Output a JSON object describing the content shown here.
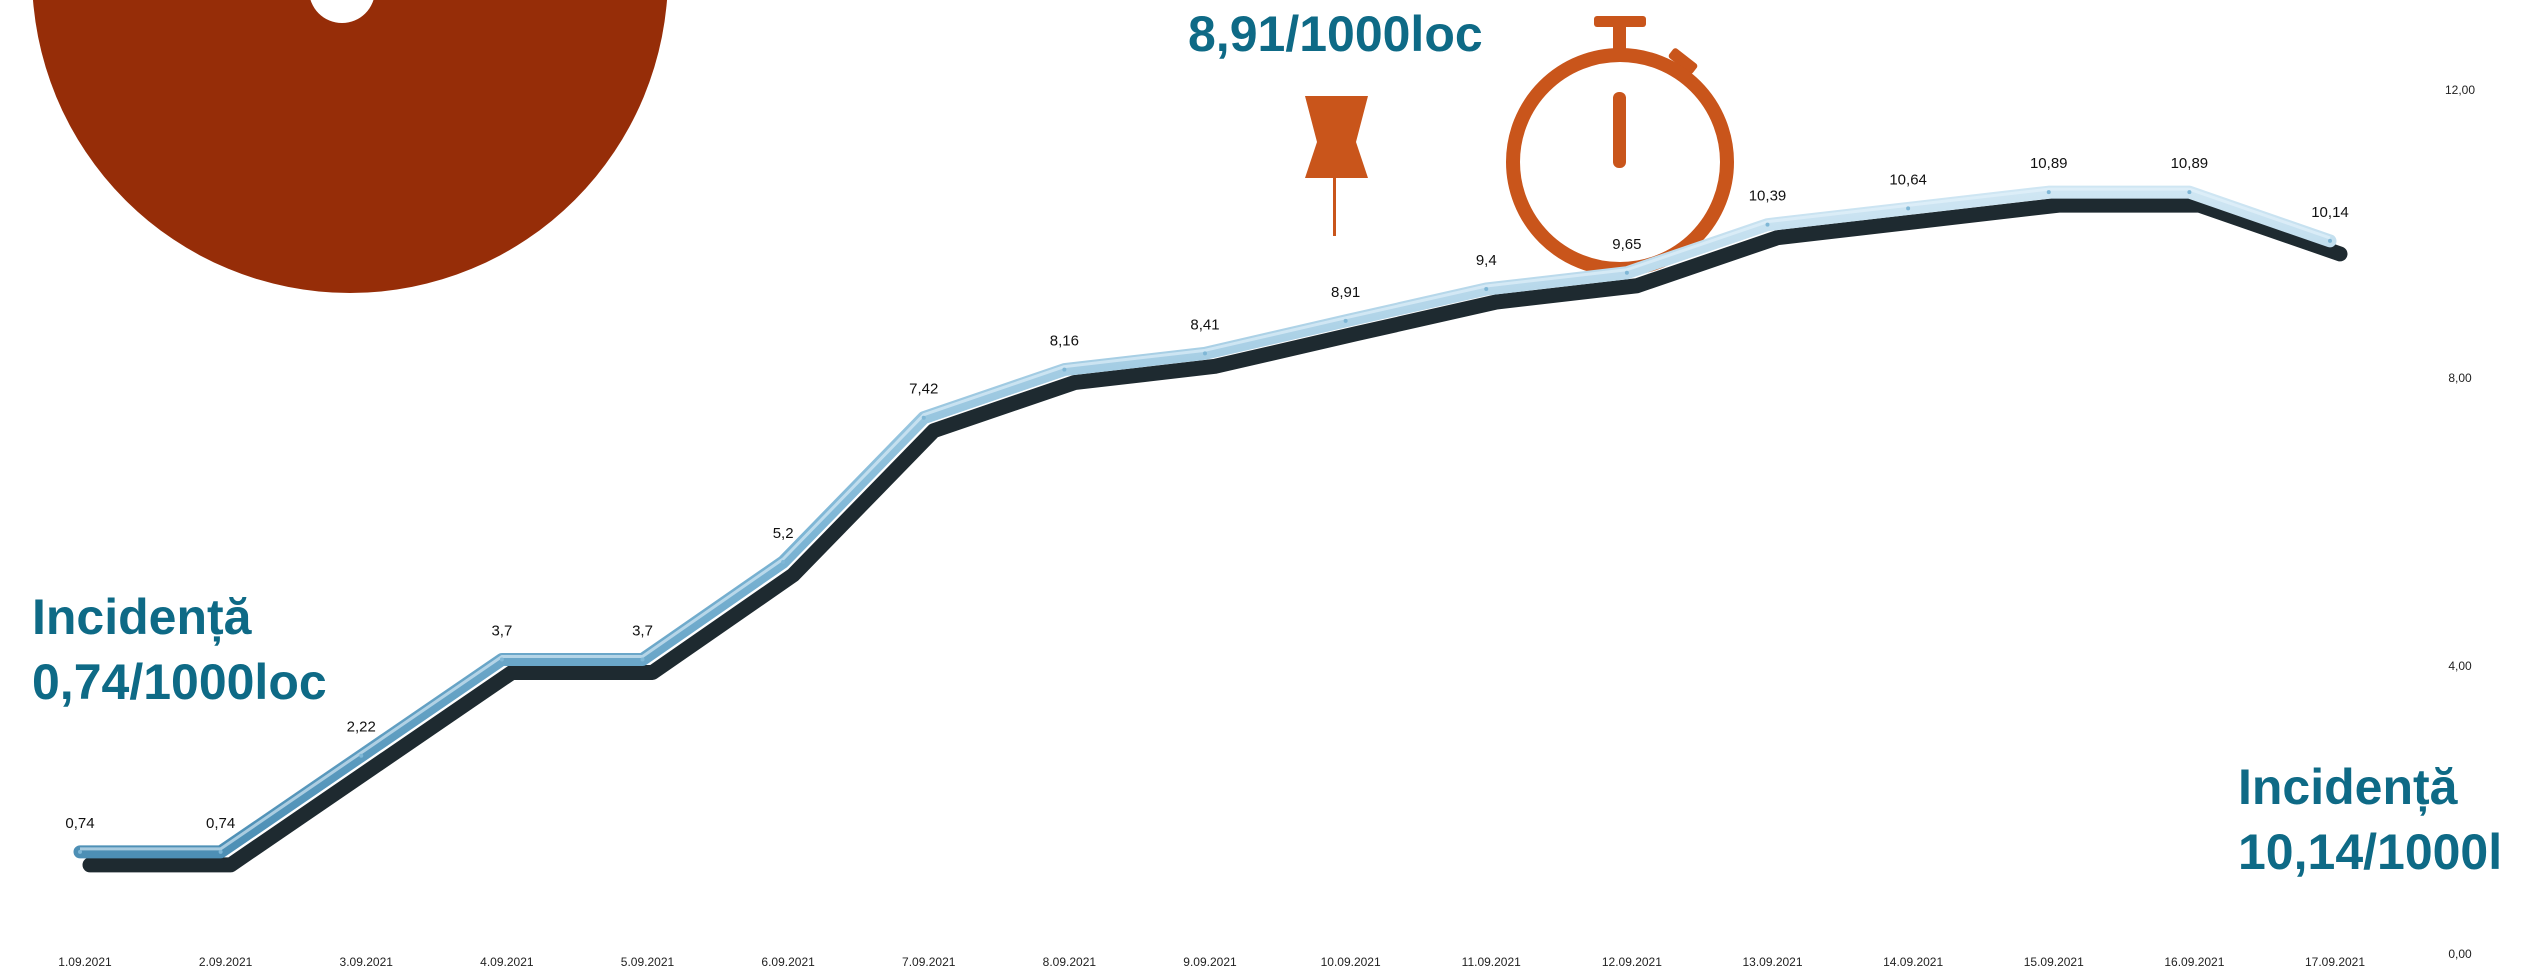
{
  "chart_data": {
    "type": "line",
    "categories": [
      "1.09.2021",
      "2.09.2021",
      "3.09.2021",
      "4.09.2021",
      "5.09.2021",
      "6.09.2021",
      "7.09.2021",
      "8.09.2021",
      "9.09.2021",
      "10.09.2021",
      "11.09.2021",
      "12.09.2021",
      "13.09.2021",
      "14.09.2021",
      "15.09.2021",
      "16.09.2021",
      "17.09.2021"
    ],
    "values": [
      0.74,
      0.74,
      2.22,
      3.7,
      3.7,
      5.2,
      7.42,
      8.16,
      8.41,
      8.91,
      9.4,
      9.65,
      10.39,
      10.64,
      10.89,
      10.89,
      10.14
    ],
    "data_labels": [
      "0,74",
      "0,74",
      "2,22",
      "3,7",
      "3,7",
      "5,2",
      "7,42",
      "8,16",
      "8,41",
      "8,91",
      "9,4",
      "9,65",
      "10,39",
      "10,64",
      "10,89",
      "10,89",
      "10,14"
    ],
    "y_ticks": [
      "0,00",
      "4,00",
      "8,00",
      "12,00"
    ],
    "ylim": [
      0,
      12
    ],
    "y_axis_side": "right",
    "grid": false,
    "colors": {
      "line": "#7fb7d6",
      "shadow": "#1e2a30",
      "accent": "#c9551b",
      "circle": "#962d08",
      "annotation": "#0e6a86"
    }
  },
  "annotations": {
    "top": "8,91/1000loc",
    "left_line1": "Incidență",
    "left_line2": "0,74/1000loc",
    "right_line1": "Incidență",
    "right_line2": "10,14/1000l"
  },
  "icons": {
    "pin": "push-pin-icon",
    "timer": "stopwatch-icon",
    "circle": "circle-graphic"
  }
}
